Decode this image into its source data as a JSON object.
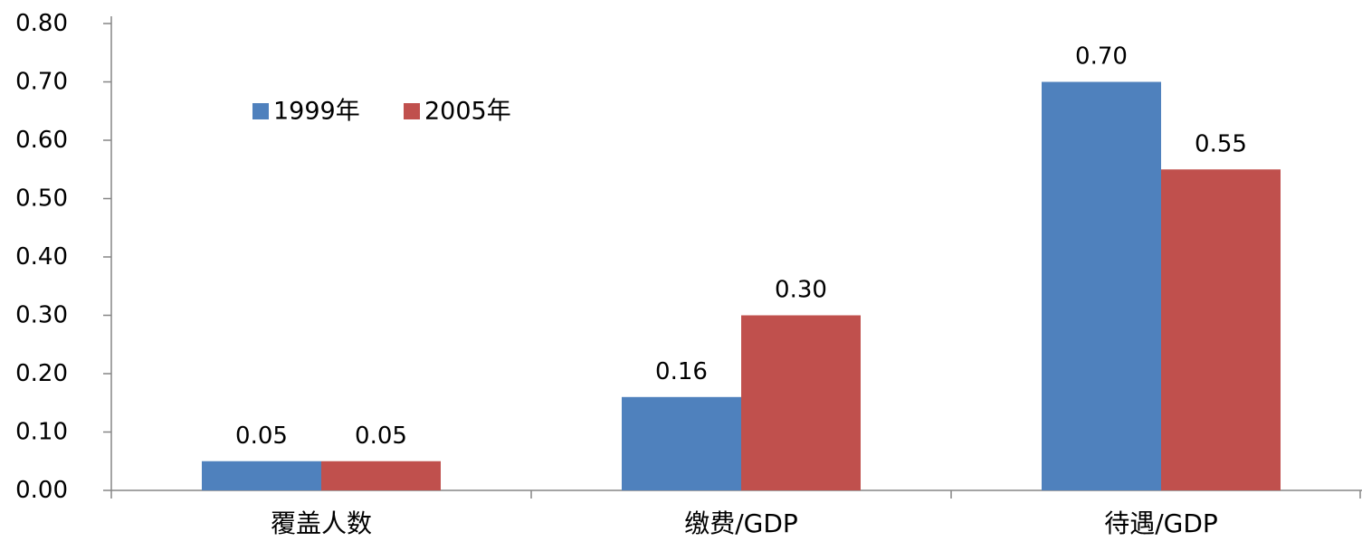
{
  "chart_data": {
    "type": "bar",
    "categories": [
      "覆盖人数",
      "缴费/GDP",
      "待遇/GDP"
    ],
    "series": [
      {
        "name": "1999年",
        "color": "#4F81BD",
        "values": [
          0.05,
          0.16,
          0.7
        ],
        "labels": [
          "0.05",
          "0.16",
          "0.70"
        ]
      },
      {
        "name": "2005年",
        "color": "#C0504D",
        "values": [
          0.05,
          0.3,
          0.55
        ],
        "labels": [
          "0.05",
          "0.30",
          "0.55"
        ]
      }
    ],
    "ylim": [
      0,
      0.8
    ],
    "yticks": [
      0,
      0.1,
      0.2,
      0.3,
      0.4,
      0.5,
      0.6,
      0.7,
      0.8
    ],
    "ytick_labels": [
      "0.00",
      "0.10",
      "0.20",
      "0.30",
      "0.40",
      "0.50",
      "0.60",
      "0.70",
      "0.80"
    ],
    "grid": false,
    "legend_position": "top-left"
  }
}
